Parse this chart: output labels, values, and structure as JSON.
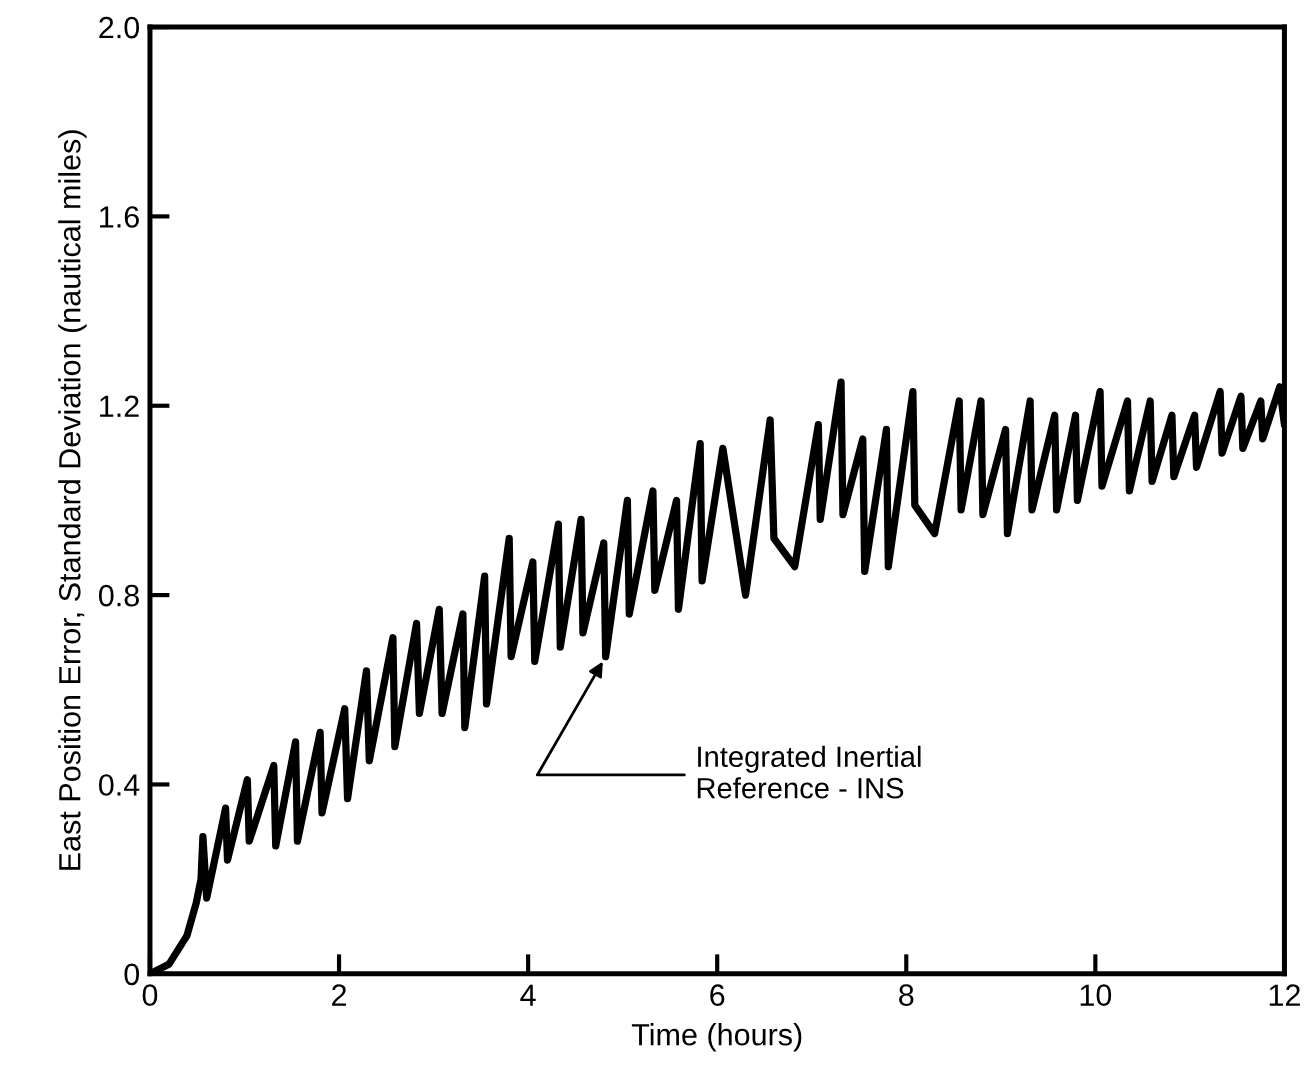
{
  "chart_data": {
    "type": "line",
    "xlabel": "Time (hours)",
    "ylabel": "East Position Error, Standard Deviation (nautical miles)",
    "xlim": [
      0,
      12
    ],
    "ylim": [
      0,
      2
    ],
    "xticks": [
      0,
      2,
      4,
      6,
      8,
      10,
      12
    ],
    "yticks": [
      0,
      0.4,
      0.8,
      1.2,
      1.6,
      {
        "value": 2,
        "label": "2.0"
      }
    ],
    "grid": false,
    "legend": false,
    "series": [
      {
        "color": "#000000",
        "x": [
          0,
          0.2,
          0.39,
          0.49,
          0.54,
          0.56,
          0.6,
          0.8,
          0.82,
          1.03,
          1.05,
          1.31,
          1.33,
          1.54,
          1.56,
          1.8,
          1.82,
          2.06,
          2.09,
          2.29,
          2.32,
          2.57,
          2.59,
          2.82,
          2.85,
          3.06,
          3.09,
          3.31,
          3.33,
          3.54,
          3.56,
          3.8,
          3.82,
          4.05,
          4.07,
          4.32,
          4.34,
          4.56,
          4.58,
          4.8,
          4.82,
          5.05,
          5.07,
          5.32,
          5.34,
          5.57,
          5.59,
          5.82,
          5.84,
          6.06,
          6.3,
          6.56,
          6.6,
          6.82,
          7.07,
          7.09,
          7.31,
          7.33,
          7.54,
          7.56,
          7.79,
          7.81,
          8.07,
          8.09,
          8.3,
          8.56,
          8.58,
          8.79,
          8.81,
          9.05,
          9.07,
          9.31,
          9.33,
          9.57,
          9.59,
          9.79,
          9.81,
          10.05,
          10.07,
          10.34,
          10.36,
          10.58,
          10.6,
          10.81,
          10.83,
          11.05,
          11.07,
          11.32,
          11.34,
          11.54,
          11.56,
          11.75,
          11.77,
          11.95,
          12
        ],
        "values": [
          0,
          0.02,
          0.08,
          0.15,
          0.2,
          0.29,
          0.16,
          0.35,
          0.24,
          0.41,
          0.28,
          0.44,
          0.27,
          0.49,
          0.28,
          0.51,
          0.34,
          0.56,
          0.37,
          0.64,
          0.45,
          0.71,
          0.48,
          0.74,
          0.55,
          0.77,
          0.55,
          0.76,
          0.52,
          0.84,
          0.57,
          0.92,
          0.67,
          0.87,
          0.66,
          0.95,
          0.69,
          0.96,
          0.72,
          0.91,
          0.67,
          1.0,
          0.76,
          1.02,
          0.81,
          1.0,
          0.77,
          1.12,
          0.83,
          1.11,
          0.8,
          1.17,
          0.92,
          0.86,
          1.16,
          0.96,
          1.25,
          0.97,
          1.13,
          0.85,
          1.15,
          0.86,
          1.23,
          0.99,
          0.93,
          1.21,
          0.98,
          1.21,
          0.97,
          1.15,
          0.93,
          1.21,
          0.98,
          1.18,
          0.98,
          1.18,
          1.0,
          1.23,
          1.03,
          1.21,
          1.02,
          1.21,
          1.04,
          1.18,
          1.05,
          1.18,
          1.07,
          1.23,
          1.1,
          1.22,
          1.11,
          1.21,
          1.13,
          1.24,
          1.16
        ]
      }
    ],
    "annotations": [
      {
        "text": "Integrated Inertial\nReference - INS",
        "x": 4.82,
        "y": 0.67
      }
    ]
  }
}
